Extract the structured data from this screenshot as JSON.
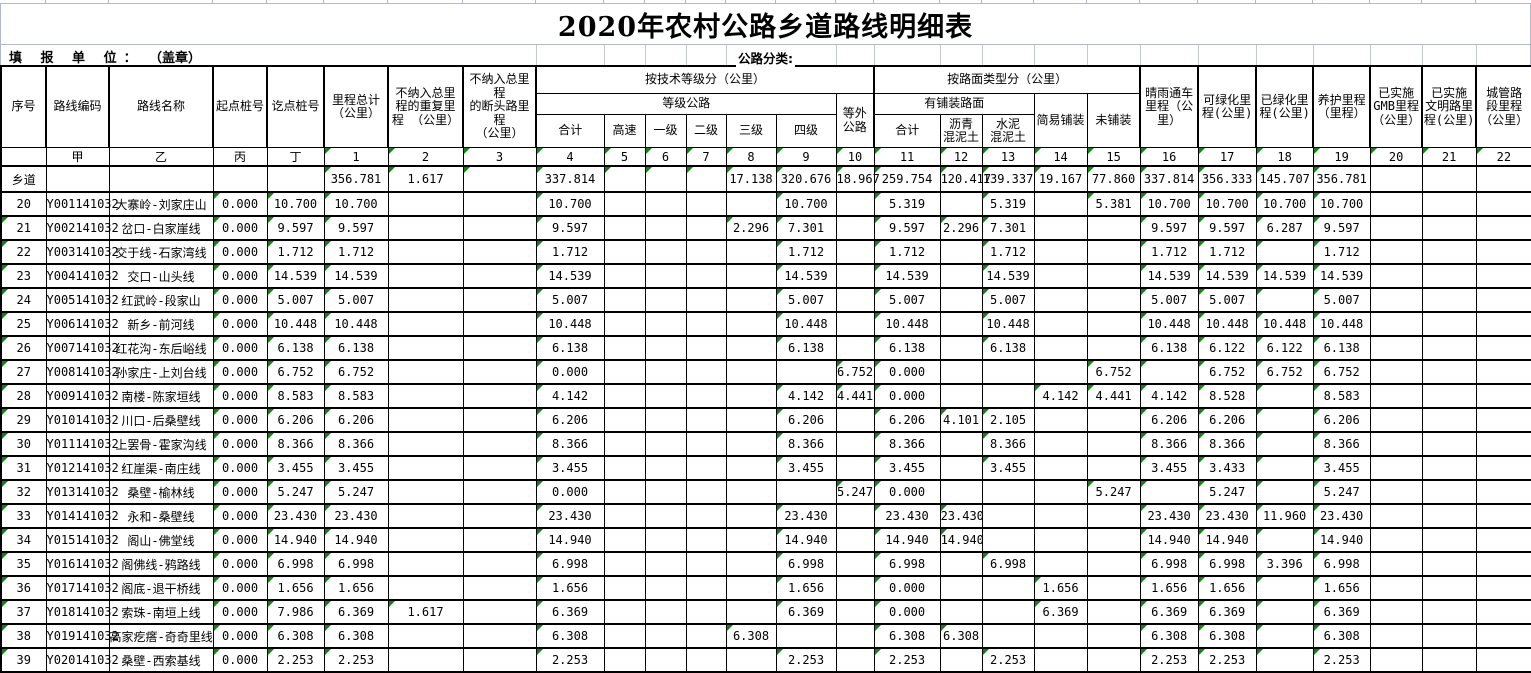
{
  "title": "2020年农村公路乡道路线明细表",
  "meta": {
    "unit_label": "填 报 单 位：",
    "seal": "（盖章）",
    "classification": "公路分类:"
  },
  "header": {
    "simple_left": [
      "序号",
      "路线编码",
      "路线名称",
      "起点桩号",
      "讫点桩号",
      "里程总计\n（公里）",
      "不纳入总里\n程的重复里\n程 （公里）",
      "不纳入总里程\n的断头路里程\n（公里）"
    ],
    "tech_group": "按技术等级分（公里）",
    "grade_group": "等级公路",
    "grade_cols": [
      "合计",
      "高速",
      "一级",
      "二级",
      "三级",
      "四级"
    ],
    "off_grade": "等外\n公路",
    "surface_group": "按路面类型分（公里）",
    "paved_group": "有铺装路面",
    "paved_cols": [
      "合计",
      "沥青\n混泥土",
      "水泥\n混泥土"
    ],
    "simple_paved": "简易铺装",
    "unpaved": "未铺装",
    "right_cols": [
      "晴雨通车\n里程（公\n里）",
      "可绿化里\n程(公里)",
      "已绿化里\n程(公里)",
      "养护里程\n（里程）",
      "已实施\nGMB里程\n（公里）",
      "已实施\n文明路里\n程(公里)",
      "城管路\n段里程\n（公里）"
    ],
    "code_row": [
      "",
      "甲",
      "乙",
      "丙",
      "丁",
      "1",
      "2",
      "3",
      "4",
      "5",
      "6",
      "7",
      "8",
      "9",
      "10",
      "11",
      "12",
      "13",
      "14",
      "15",
      "16",
      "17",
      "18",
      "19",
      "20",
      "21",
      "22"
    ]
  },
  "rows": [
    [
      "乡道",
      "",
      "",
      "",
      "",
      "356.781",
      "1.617",
      "",
      "337.814",
      "",
      "",
      "",
      "17.138",
      "320.676",
      "18.967",
      "259.754",
      "120.417",
      "139.337",
      "19.167",
      "77.860",
      "337.814",
      "356.333",
      "145.707",
      "356.781",
      "",
      "",
      ""
    ],
    [
      "20",
      "Y001141032",
      "大寨岭-刘家庄山",
      "0.000",
      "10.700",
      "10.700",
      "",
      "",
      "10.700",
      "",
      "",
      "",
      "",
      "10.700",
      "",
      "5.319",
      "",
      "5.319",
      "",
      "5.381",
      "10.700",
      "10.700",
      "10.700",
      "10.700",
      "",
      "",
      ""
    ],
    [
      "21",
      "Y002141032",
      "岔口-白家崖线",
      "0.000",
      "9.597",
      "9.597",
      "",
      "",
      "9.597",
      "",
      "",
      "",
      "2.296",
      "7.301",
      "",
      "9.597",
      "2.296",
      "7.301",
      "",
      "",
      "9.597",
      "9.597",
      "6.287",
      "9.597",
      "",
      "",
      ""
    ],
    [
      "22",
      "Y003141032",
      "交于线-石家湾线",
      "0.000",
      "1.712",
      "1.712",
      "",
      "",
      "1.712",
      "",
      "",
      "",
      "",
      "1.712",
      "",
      "1.712",
      "",
      "1.712",
      "",
      "",
      "1.712",
      "1.712",
      "",
      "1.712",
      "",
      "",
      ""
    ],
    [
      "23",
      "Y004141032",
      "交口-山头线",
      "0.000",
      "14.539",
      "14.539",
      "",
      "",
      "14.539",
      "",
      "",
      "",
      "",
      "14.539",
      "",
      "14.539",
      "",
      "14.539",
      "",
      "",
      "14.539",
      "14.539",
      "14.539",
      "14.539",
      "",
      "",
      ""
    ],
    [
      "24",
      "Y005141032",
      "红武岭-段家山",
      "0.000",
      "5.007",
      "5.007",
      "",
      "",
      "5.007",
      "",
      "",
      "",
      "",
      "5.007",
      "",
      "5.007",
      "",
      "5.007",
      "",
      "",
      "5.007",
      "5.007",
      "",
      "5.007",
      "",
      "",
      ""
    ],
    [
      "25",
      "Y006141032",
      "新乡-前河线",
      "0.000",
      "10.448",
      "10.448",
      "",
      "",
      "10.448",
      "",
      "",
      "",
      "",
      "10.448",
      "",
      "10.448",
      "",
      "10.448",
      "",
      "",
      "10.448",
      "10.448",
      "10.448",
      "10.448",
      "",
      "",
      ""
    ],
    [
      "26",
      "Y007141032",
      "红花沟-东后峪线",
      "0.000",
      "6.138",
      "6.138",
      "",
      "",
      "6.138",
      "",
      "",
      "",
      "",
      "6.138",
      "",
      "6.138",
      "",
      "6.138",
      "",
      "",
      "6.138",
      "6.122",
      "6.122",
      "6.138",
      "",
      "",
      ""
    ],
    [
      "27",
      "Y008141032",
      "孙家庄-上刘台线",
      "0.000",
      "6.752",
      "6.752",
      "",
      "",
      "0.000",
      "",
      "",
      "",
      "",
      "",
      "6.752",
      "0.000",
      "",
      "",
      "",
      "6.752",
      "",
      "6.752",
      "6.752",
      "6.752",
      "",
      "",
      ""
    ],
    [
      "28",
      "Y009141032",
      "南楼-陈家垣线",
      "0.000",
      "8.583",
      "8.583",
      "",
      "",
      "4.142",
      "",
      "",
      "",
      "",
      "4.142",
      "4.441",
      "0.000",
      "",
      "",
      "4.142",
      "4.441",
      "4.142",
      "8.528",
      "",
      "8.583",
      "",
      "",
      ""
    ],
    [
      "29",
      "Y010141032",
      "川口-后桑壁线",
      "0.000",
      "6.206",
      "6.206",
      "",
      "",
      "6.206",
      "",
      "",
      "",
      "",
      "6.206",
      "",
      "6.206",
      "4.101",
      "2.105",
      "",
      "",
      "6.206",
      "6.206",
      "",
      "6.206",
      "",
      "",
      ""
    ],
    [
      "30",
      "Y011141032",
      "上罢骨-霍家沟线",
      "0.000",
      "8.366",
      "8.366",
      "",
      "",
      "8.366",
      "",
      "",
      "",
      "",
      "8.366",
      "",
      "8.366",
      "",
      "8.366",
      "",
      "",
      "8.366",
      "8.366",
      "",
      "8.366",
      "",
      "",
      ""
    ],
    [
      "31",
      "Y012141032",
      "红崖渠-南庄线",
      "0.000",
      "3.455",
      "3.455",
      "",
      "",
      "3.455",
      "",
      "",
      "",
      "",
      "3.455",
      "",
      "3.455",
      "",
      "3.455",
      "",
      "",
      "3.455",
      "3.433",
      "",
      "3.455",
      "",
      "",
      ""
    ],
    [
      "32",
      "Y013141032",
      "桑壁-榆林线",
      "0.000",
      "5.247",
      "5.247",
      "",
      "",
      "0.000",
      "",
      "",
      "",
      "",
      "",
      "5.247",
      "0.000",
      "",
      "",
      "",
      "5.247",
      "",
      "5.247",
      "",
      "5.247",
      "",
      "",
      ""
    ],
    [
      "33",
      "Y014141032",
      "永和-桑壁线",
      "0.000",
      "23.430",
      "23.430",
      "",
      "",
      "23.430",
      "",
      "",
      "",
      "",
      "23.430",
      "",
      "23.430",
      "23.430",
      "",
      "",
      "",
      "23.430",
      "23.430",
      "11.960",
      "23.430",
      "",
      "",
      ""
    ],
    [
      "34",
      "Y015141032",
      "阁山-佛堂线",
      "0.000",
      "14.940",
      "14.940",
      "",
      "",
      "14.940",
      "",
      "",
      "",
      "",
      "14.940",
      "",
      "14.940",
      "14.940",
      "",
      "",
      "",
      "14.940",
      "14.940",
      "",
      "14.940",
      "",
      "",
      ""
    ],
    [
      "35",
      "Y016141032",
      "阁佛线-鸦路线",
      "0.000",
      "6.998",
      "6.998",
      "",
      "",
      "6.998",
      "",
      "",
      "",
      "",
      "6.998",
      "",
      "6.998",
      "",
      "6.998",
      "",
      "",
      "6.998",
      "6.998",
      "3.396",
      "6.998",
      "",
      "",
      ""
    ],
    [
      "36",
      "Y017141032",
      "阁底-退干桥线",
      "0.000",
      "1.656",
      "1.656",
      "",
      "",
      "1.656",
      "",
      "",
      "",
      "",
      "1.656",
      "",
      "0.000",
      "",
      "",
      "1.656",
      "",
      "1.656",
      "1.656",
      "",
      "1.656",
      "",
      "",
      ""
    ],
    [
      "37",
      "Y018141032",
      "索珠-南垣上线",
      "0.000",
      "7.986",
      "6.369",
      "1.617",
      "",
      "6.369",
      "",
      "",
      "",
      "",
      "6.369",
      "",
      "0.000",
      "",
      "",
      "6.369",
      "",
      "6.369",
      "6.369",
      "",
      "6.369",
      "",
      "",
      ""
    ],
    [
      "38",
      "Y019141032",
      "高家疙瘩-奇奇里线",
      "0.000",
      "6.308",
      "6.308",
      "",
      "",
      "6.308",
      "",
      "",
      "",
      "6.308",
      "",
      "",
      "6.308",
      "6.308",
      "",
      "",
      "",
      "6.308",
      "6.308",
      "",
      "6.308",
      "",
      "",
      ""
    ],
    [
      "39",
      "Y020141032",
      "桑壁-西索基线",
      "0.000",
      "2.253",
      "2.253",
      "",
      "",
      "2.253",
      "",
      "",
      "",
      "",
      "2.253",
      "",
      "2.253",
      "",
      "2.253",
      "",
      "",
      "2.253",
      "2.253",
      "",
      "2.253",
      "",
      "",
      ""
    ]
  ],
  "colors": {
    "triangle_green": "#168016",
    "grid_light": "#b2b8c8",
    "table_border": "#000000"
  }
}
